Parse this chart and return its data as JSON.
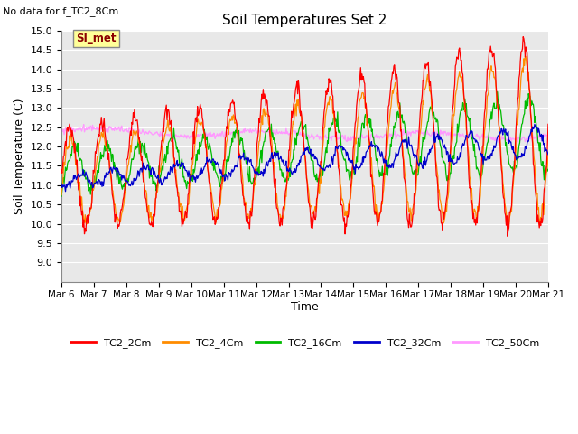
{
  "title": "Soil Temperatures Set 2",
  "top_left_text": "No data for f_TC2_8Cm",
  "ylabel": "Soil Temperature (C)",
  "xlabel": "Time",
  "ylim": [
    8.5,
    15.0
  ],
  "yticks": [
    9.0,
    9.5,
    10.0,
    10.5,
    11.0,
    11.5,
    12.0,
    12.5,
    13.0,
    13.5,
    14.0,
    14.5,
    15.0
  ],
  "background_color": "#e8e8e8",
  "fig_background": "#ffffff",
  "legend_entries": [
    "TC2_2Cm",
    "TC2_4Cm",
    "TC2_16Cm",
    "TC2_32Cm",
    "TC2_50Cm"
  ],
  "line_colors": [
    "#ff0000",
    "#ff8c00",
    "#00bb00",
    "#0000cc",
    "#ff99ff"
  ],
  "xtick_labels": [
    "Mar 6",
    "Mar 7",
    "Mar 8",
    "Mar 9",
    "Mar 10",
    "Mar 11",
    "Mar 12",
    "Mar 13",
    "Mar 14",
    "Mar 15",
    "Mar 16",
    "Mar 17",
    "Mar 18",
    "Mar 19",
    "Mar 20",
    "Mar 21"
  ],
  "si_met_box_color": "#ffff99",
  "si_met_text_color": "#8b0000",
  "n_points": 720,
  "days": 15
}
